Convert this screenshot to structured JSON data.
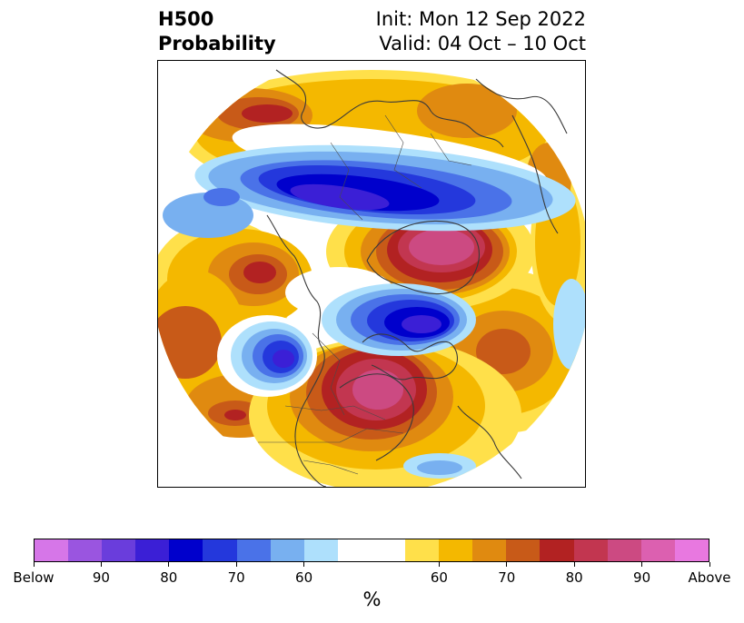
{
  "title": {
    "left_line1": "H500",
    "left_line2": "Probability",
    "right_line1": "Init: Mon 12 Sep 2022",
    "right_line2": "Valid: 04 Oct – 10 Oct"
  },
  "colorbar": {
    "unit": "%",
    "colors": [
      "#d676e8",
      "#9a55e0",
      "#6a3ddc",
      "#3b1fd6",
      "#0000cc",
      "#2438dc",
      "#4a72e8",
      "#78b0f0",
      "#aee0fc",
      "#ffffff",
      "#ffffff",
      "#ffe04a",
      "#f4b800",
      "#e08a10",
      "#c85a18",
      "#b22222",
      "#c23650",
      "#cc4a82",
      "#dc60b0",
      "#e878e0"
    ],
    "ticks": [
      "Below",
      "90",
      "80",
      "70",
      "60",
      "60",
      "70",
      "80",
      "90",
      "Above"
    ]
  },
  "map": {
    "projection": "north-polar-stereographic",
    "features": [
      "coastlines",
      "country-borders",
      "us-state-borders"
    ]
  }
}
